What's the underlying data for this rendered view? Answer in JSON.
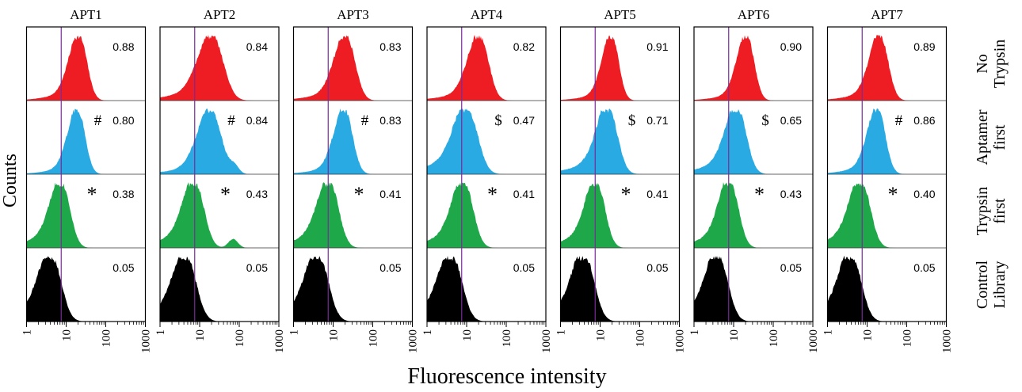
{
  "figure": {
    "ylabel": "Counts",
    "xlabel": "Fluorescence intensity"
  },
  "chart_data": {
    "type": "area",
    "x_scale": "log",
    "xlim": [
      1,
      1000
    ],
    "x_ticks": [
      1,
      10,
      100,
      1000
    ],
    "x_tick_labels": [
      "1",
      "10",
      "100",
      "1000"
    ],
    "xlabel": "Fluorescence intensity",
    "ylabel": "Counts",
    "gate_x": 7.5,
    "gate_color": "#7a2a9a",
    "panels": [
      "APT1",
      "APT2",
      "APT3",
      "APT4",
      "APT5",
      "APT6",
      "APT7"
    ],
    "conditions": [
      {
        "label": "No\nTrypsin",
        "color": "#ee1c23"
      },
      {
        "label": "Aptamer\nfirst",
        "color": "#29aae2"
      },
      {
        "label": "Trypsin\nfirst",
        "color": "#1fa84a"
      },
      {
        "label": "Control\nLibrary",
        "color": "#000000"
      }
    ],
    "values": [
      [
        "0.88",
        "0.80",
        "0.38",
        "0.05"
      ],
      [
        "0.84",
        "0.84",
        "0.43",
        "0.05"
      ],
      [
        "0.83",
        "0.83",
        "0.41",
        "0.05"
      ],
      [
        "0.82",
        "0.47",
        "0.41",
        "0.05"
      ],
      [
        "0.91",
        "0.71",
        "0.41",
        "0.05"
      ],
      [
        "0.90",
        "0.65",
        "0.43",
        "0.05"
      ],
      [
        "0.89",
        "0.86",
        "0.40",
        "0.05"
      ]
    ],
    "marks": [
      [
        "",
        "#",
        "*",
        ""
      ],
      [
        "",
        "#",
        "*",
        ""
      ],
      [
        "",
        "#",
        "*",
        ""
      ],
      [
        "",
        "$",
        "*",
        ""
      ],
      [
        "",
        "$",
        "*",
        ""
      ],
      [
        "",
        "$",
        "*",
        ""
      ],
      [
        "",
        "#",
        "*",
        ""
      ]
    ],
    "peaks": [
      [
        {
          "peak": 22,
          "width": 0.26,
          "tail": 0.12
        },
        {
          "peak": 20,
          "width": 0.25,
          "tail": 0.1
        },
        {
          "peak": 8.0,
          "width": 0.28,
          "tail": 0.22
        },
        {
          "peak": 4.5,
          "width": 0.32,
          "tail": 0.25
        }
      ],
      [
        {
          "peak": 22,
          "width": 0.36,
          "tail": 0.14
        },
        {
          "peak": 20,
          "width": 0.34,
          "tail": 0.1,
          "bump": {
            "x": 75,
            "h": 0.12
          }
        },
        {
          "peak": 8.0,
          "width": 0.3,
          "tail": 0.22,
          "bump": {
            "x": 70,
            "h": 0.14
          }
        },
        {
          "peak": 4.8,
          "width": 0.33,
          "tail": 0.22
        }
      ],
      [
        {
          "peak": 22,
          "width": 0.3,
          "tail": 0.12
        },
        {
          "peak": 20,
          "width": 0.27,
          "tail": 0.1
        },
        {
          "peak": 8.5,
          "width": 0.3,
          "tail": 0.22
        },
        {
          "peak": 4.5,
          "width": 0.33,
          "tail": 0.24
        }
      ],
      [
        {
          "peak": 22,
          "width": 0.3,
          "tail": 0.12
        },
        {
          "peak": 11,
          "width": 0.34,
          "tail": 0.24
        },
        {
          "peak": 9.0,
          "width": 0.3,
          "tail": 0.22
        },
        {
          "peak": 4.5,
          "width": 0.33,
          "tail": 0.24
        }
      ],
      [
        {
          "peak": 20,
          "width": 0.24,
          "tail": 0.1
        },
        {
          "peak": 17,
          "width": 0.3,
          "tail": 0.2
        },
        {
          "peak": 8.5,
          "width": 0.28,
          "tail": 0.22
        },
        {
          "peak": 4.3,
          "width": 0.32,
          "tail": 0.24
        }
      ],
      [
        {
          "peak": 22,
          "width": 0.25,
          "tail": 0.1
        },
        {
          "peak": 13,
          "width": 0.3,
          "tail": 0.2
        },
        {
          "peak": 8.5,
          "width": 0.28,
          "tail": 0.22
        },
        {
          "peak": 4.3,
          "width": 0.32,
          "tail": 0.24
        }
      ],
      [
        {
          "peak": 22,
          "width": 0.27,
          "tail": 0.12
        },
        {
          "peak": 19,
          "width": 0.26,
          "tail": 0.12
        },
        {
          "peak": 7.5,
          "width": 0.3,
          "tail": 0.22
        },
        {
          "peak": 4.3,
          "width": 0.32,
          "tail": 0.24
        }
      ]
    ]
  }
}
